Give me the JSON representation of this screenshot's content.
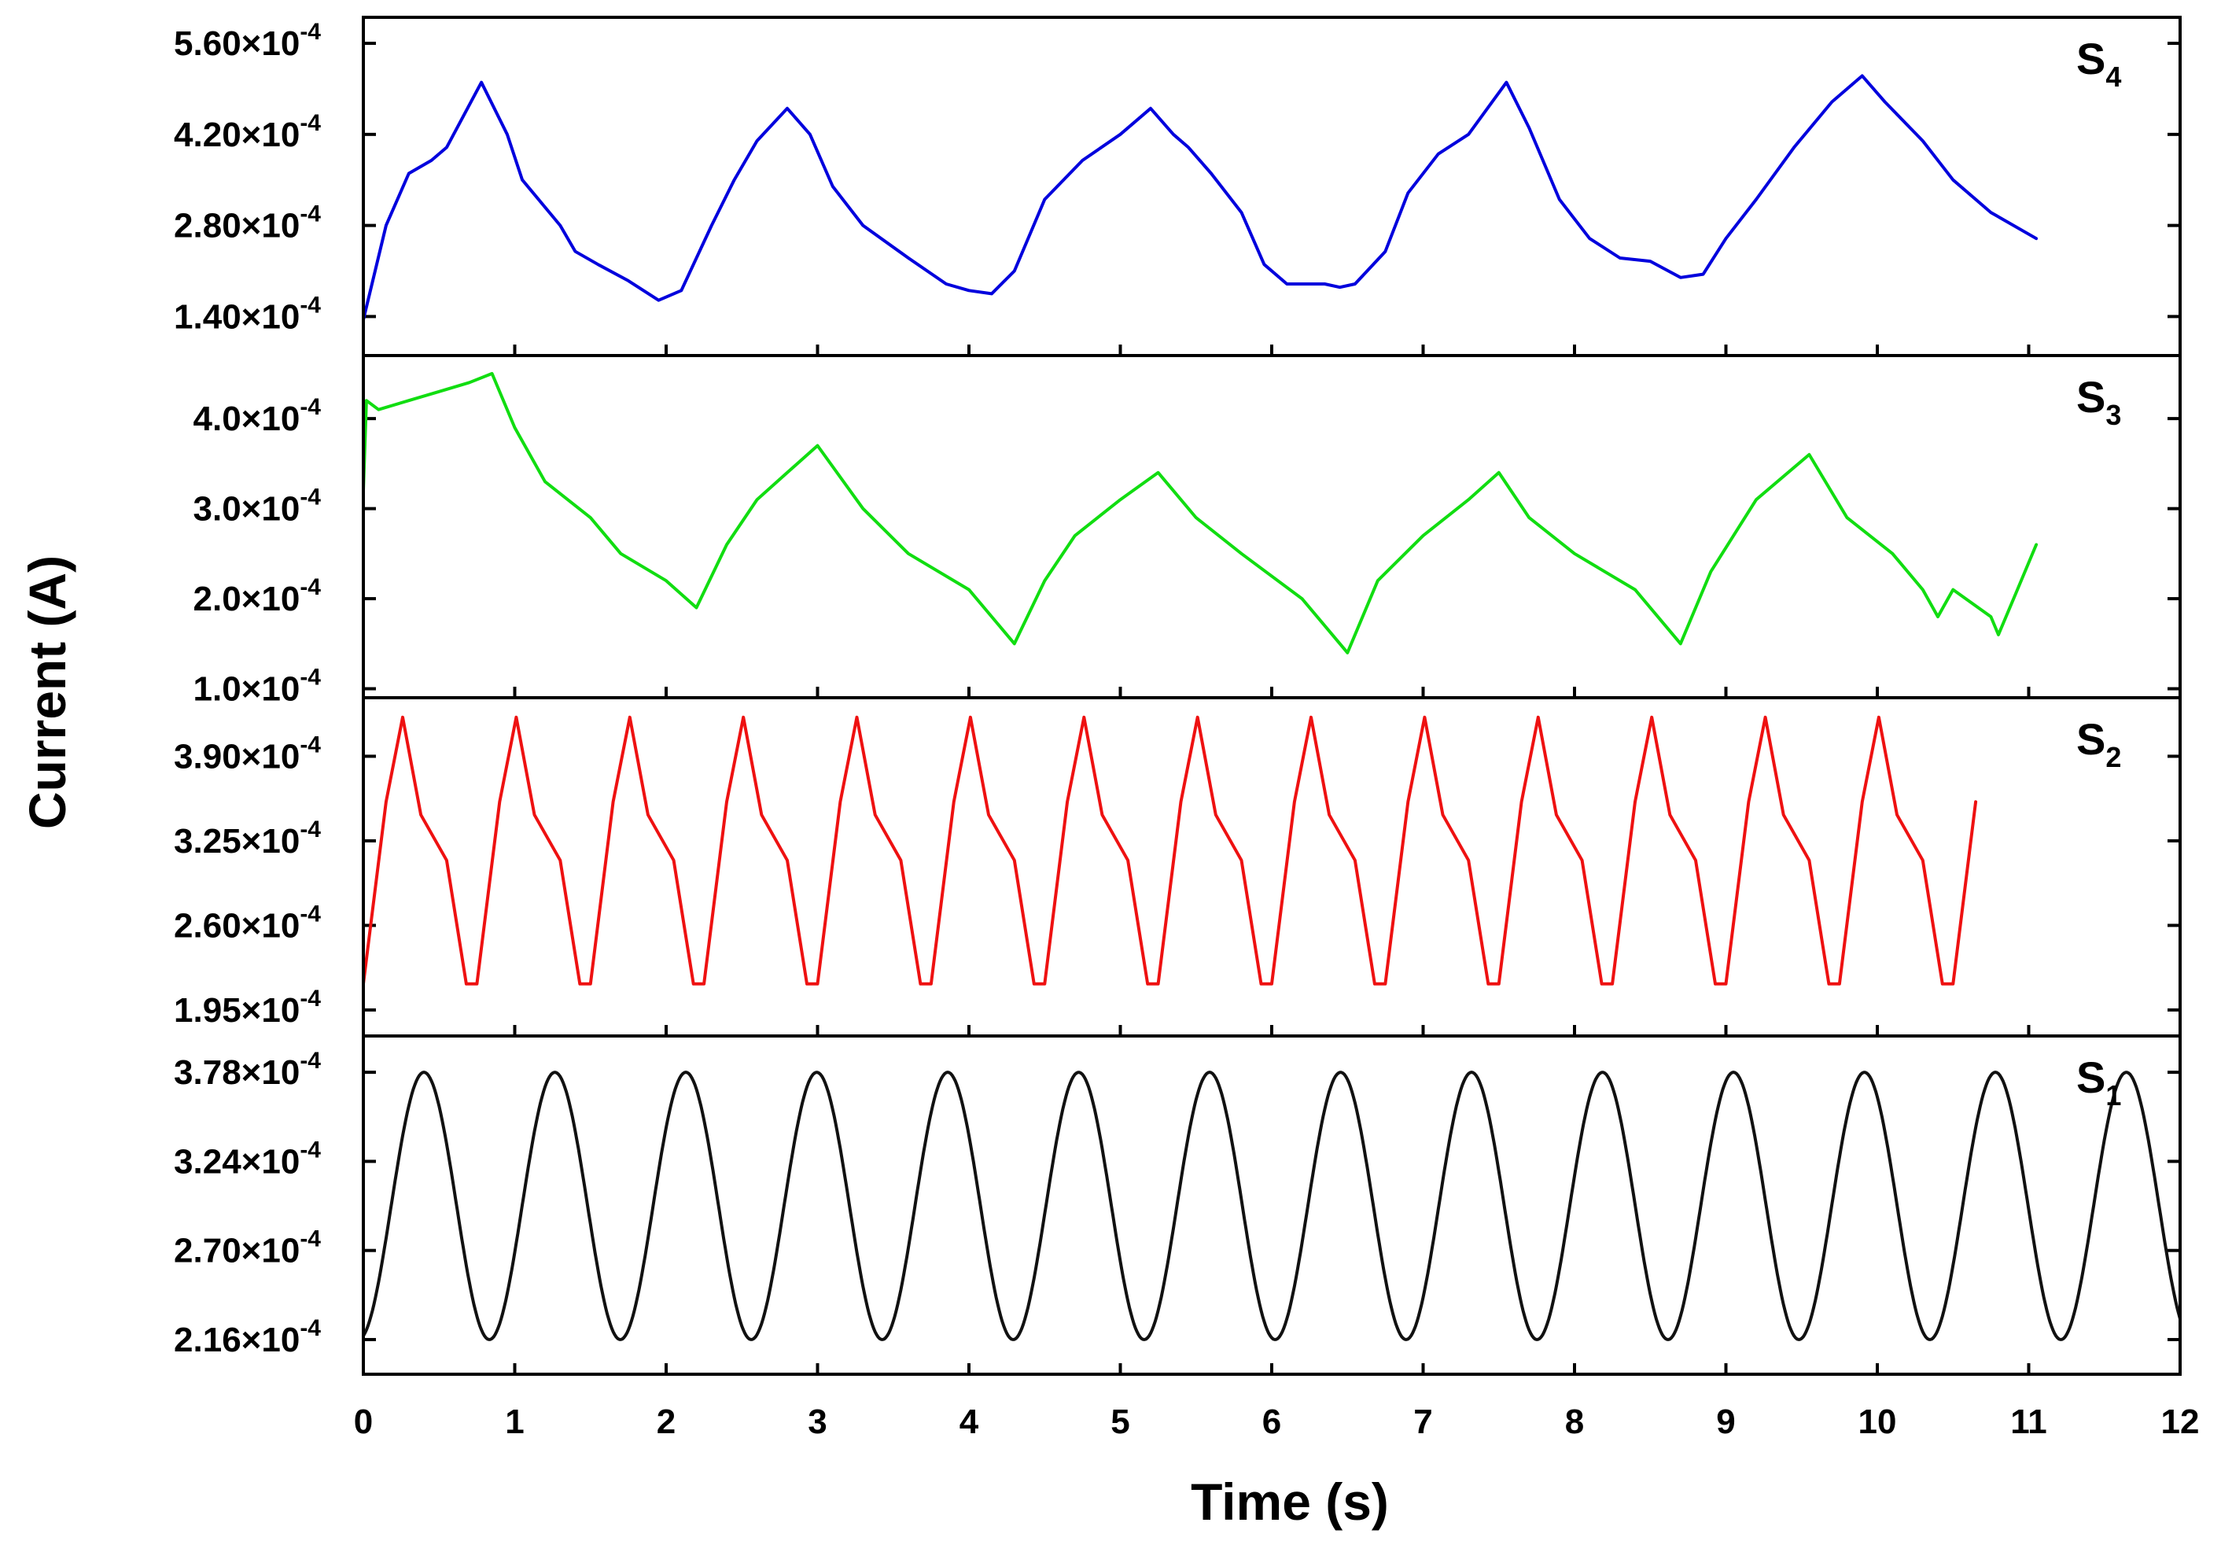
{
  "chart_data": {
    "type": "line",
    "xlabel": "Time (s)",
    "ylabel": "Current (A)",
    "xlim": [
      0,
      12
    ],
    "xticks": [
      0,
      1,
      2,
      3,
      4,
      5,
      6,
      7,
      8,
      9,
      10,
      11,
      12
    ],
    "xtick_labels": [
      "0",
      "1",
      "2",
      "3",
      "4",
      "5",
      "6",
      "7",
      "8",
      "9",
      "10",
      "11",
      "12"
    ],
    "panels": [
      {
        "name": "S4",
        "label_main": "S",
        "label_sub": "4",
        "color": "#0000dd",
        "ylim": [
          8e-05,
          0.0006
        ],
        "yticks": [
          0.00014,
          0.00028,
          0.00042,
          0.00056
        ],
        "ytick_labels": [
          {
            "mantissa": "1.40×10",
            "exp": "-4"
          },
          {
            "mantissa": "2.80×10",
            "exp": "-4"
          },
          {
            "mantissa": "4.20×10",
            "exp": "-4"
          },
          {
            "mantissa": "5.60×10",
            "exp": "-4"
          }
        ],
        "points": [
          [
            0.0,
            0.000135
          ],
          [
            0.15,
            0.00028
          ],
          [
            0.3,
            0.00036
          ],
          [
            0.45,
            0.00038
          ],
          [
            0.55,
            0.0004
          ],
          [
            0.78,
            0.0005
          ],
          [
            0.95,
            0.00042
          ],
          [
            1.05,
            0.00035
          ],
          [
            1.3,
            0.00028
          ],
          [
            1.4,
            0.00024
          ],
          [
            1.55,
            0.00022
          ],
          [
            1.75,
            0.000195
          ],
          [
            1.95,
            0.000165
          ],
          [
            2.1,
            0.00018
          ],
          [
            2.3,
            0.00028
          ],
          [
            2.45,
            0.00035
          ],
          [
            2.6,
            0.00041
          ],
          [
            2.8,
            0.00046
          ],
          [
            2.95,
            0.00042
          ],
          [
            3.1,
            0.00034
          ],
          [
            3.3,
            0.00028
          ],
          [
            3.6,
            0.00023
          ],
          [
            3.85,
            0.00019
          ],
          [
            4.0,
            0.00018
          ],
          [
            4.15,
            0.000175
          ],
          [
            4.3,
            0.00021
          ],
          [
            4.5,
            0.00032
          ],
          [
            4.75,
            0.00038
          ],
          [
            5.0,
            0.00042
          ],
          [
            5.2,
            0.00046
          ],
          [
            5.35,
            0.00042
          ],
          [
            5.45,
            0.0004
          ],
          [
            5.6,
            0.00036
          ],
          [
            5.8,
            0.0003
          ],
          [
            5.95,
            0.00022
          ],
          [
            6.1,
            0.00019
          ],
          [
            6.35,
            0.00019
          ],
          [
            6.45,
            0.000185
          ],
          [
            6.55,
            0.00019
          ],
          [
            6.75,
            0.00024
          ],
          [
            6.9,
            0.00033
          ],
          [
            7.1,
            0.00039
          ],
          [
            7.3,
            0.00042
          ],
          [
            7.55,
            0.0005
          ],
          [
            7.7,
            0.00043
          ],
          [
            7.9,
            0.00032
          ],
          [
            8.1,
            0.00026
          ],
          [
            8.3,
            0.00023
          ],
          [
            8.5,
            0.000225
          ],
          [
            8.7,
            0.0002
          ],
          [
            8.85,
            0.000205
          ],
          [
            9.0,
            0.00026
          ],
          [
            9.2,
            0.00032
          ],
          [
            9.45,
            0.0004
          ],
          [
            9.7,
            0.00047
          ],
          [
            9.9,
            0.00051
          ],
          [
            10.05,
            0.00047
          ],
          [
            10.3,
            0.00041
          ],
          [
            10.5,
            0.00035
          ],
          [
            10.75,
            0.0003
          ],
          [
            11.05,
            0.00026
          ]
        ]
      },
      {
        "name": "S3",
        "label_main": "S",
        "label_sub": "3",
        "color": "#11dd11",
        "ylim": [
          9e-05,
          0.00047
        ],
        "yticks": [
          0.0001,
          0.0002,
          0.0003,
          0.0004
        ],
        "ytick_labels": [
          {
            "mantissa": "1.0×10",
            "exp": "-4"
          },
          {
            "mantissa": "2.0×10",
            "exp": "-4"
          },
          {
            "mantissa": "3.0×10",
            "exp": "-4"
          },
          {
            "mantissa": "4.0×10",
            "exp": "-4"
          }
        ],
        "points": [
          [
            0.0,
            0.00032
          ],
          [
            0.02,
            0.00042
          ],
          [
            0.1,
            0.00041
          ],
          [
            0.3,
            0.00042
          ],
          [
            0.5,
            0.00043
          ],
          [
            0.7,
            0.00044
          ],
          [
            0.85,
            0.00045
          ],
          [
            1.0,
            0.00039
          ],
          [
            1.2,
            0.00033
          ],
          [
            1.5,
            0.00029
          ],
          [
            1.7,
            0.00025
          ],
          [
            2.0,
            0.00022
          ],
          [
            2.2,
            0.00019
          ],
          [
            2.4,
            0.00026
          ],
          [
            2.6,
            0.00031
          ],
          [
            2.8,
            0.00034
          ],
          [
            3.0,
            0.00037
          ],
          [
            3.3,
            0.0003
          ],
          [
            3.6,
            0.00025
          ],
          [
            4.0,
            0.00021
          ],
          [
            4.3,
            0.00015
          ],
          [
            4.5,
            0.00022
          ],
          [
            4.7,
            0.00027
          ],
          [
            5.0,
            0.00031
          ],
          [
            5.25,
            0.00034
          ],
          [
            5.5,
            0.00029
          ],
          [
            5.8,
            0.00025
          ],
          [
            6.2,
            0.0002
          ],
          [
            6.5,
            0.00014
          ],
          [
            6.7,
            0.00022
          ],
          [
            7.0,
            0.00027
          ],
          [
            7.3,
            0.00031
          ],
          [
            7.5,
            0.00034
          ],
          [
            7.7,
            0.00029
          ],
          [
            8.0,
            0.00025
          ],
          [
            8.4,
            0.00021
          ],
          [
            8.7,
            0.00015
          ],
          [
            8.9,
            0.00023
          ],
          [
            9.2,
            0.00031
          ],
          [
            9.55,
            0.00036
          ],
          [
            9.8,
            0.00029
          ],
          [
            10.1,
            0.00025
          ],
          [
            10.3,
            0.00021
          ],
          [
            10.4,
            0.00018
          ],
          [
            10.5,
            0.00021
          ],
          [
            10.75,
            0.00018
          ],
          [
            10.8,
            0.00016
          ],
          [
            10.9,
            0.0002
          ],
          [
            11.05,
            0.00026
          ]
        ]
      },
      {
        "name": "S2",
        "label_main": "S",
        "label_sub": "2",
        "color": "#ee1111",
        "ylim": [
          0.000175,
          0.000435
        ],
        "yticks": [
          0.000195,
          0.00026,
          0.000325,
          0.00039
        ],
        "ytick_labels": [
          {
            "mantissa": "1.95×10",
            "exp": "-4"
          },
          {
            "mantissa": "2.60×10",
            "exp": "-4"
          },
          {
            "mantissa": "3.25×10",
            "exp": "-4"
          },
          {
            "mantissa": "3.90×10",
            "exp": "-4"
          }
        ],
        "cycle_start": 0.0,
        "period": 0.75,
        "cycle_shape": [
          [
            0.0,
            0.000215
          ],
          [
            0.15,
            0.000355
          ],
          [
            0.26,
            0.00042
          ],
          [
            0.38,
            0.000345
          ],
          [
            0.55,
            0.00031
          ],
          [
            0.68,
            0.000215
          ],
          [
            0.75,
            0.000215
          ]
        ],
        "end_time": 10.65,
        "peak_value": 0.00042,
        "trough_value": 0.000215
      },
      {
        "name": "S1",
        "label_main": "S",
        "label_sub": "1",
        "color": "#111111",
        "ylim": [
          0.000195,
          0.0004
        ],
        "yticks": [
          0.000216,
          0.00027,
          0.000324,
          0.000378
        ],
        "ytick_labels": [
          {
            "mantissa": "2.16×10",
            "exp": "-4"
          },
          {
            "mantissa": "2.70×10",
            "exp": "-4"
          },
          {
            "mantissa": "3.24×10",
            "exp": "-4"
          },
          {
            "mantissa": "3.78×10",
            "exp": "-4"
          }
        ],
        "sine": {
          "center": 0.000297,
          "amplitude": 8.1e-05,
          "period": 0.865,
          "peak_time": 0.4
        },
        "end_time": 12.0
      }
    ]
  }
}
